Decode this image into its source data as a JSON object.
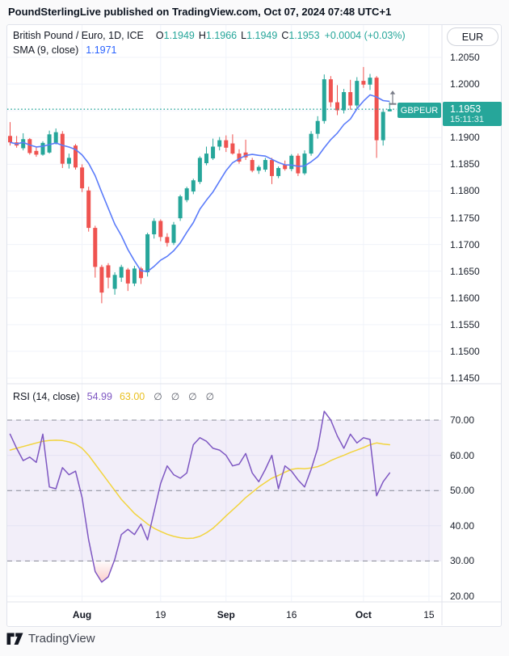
{
  "header": {
    "title": "PoundSterlingLive published on TradingView.com, Oct 07, 2024 07:48 UTC+1"
  },
  "legend": {
    "symbol_title": "British Pound / Euro, 1D, ICE",
    "ohlc": [
      {
        "label": "O",
        "value": "1.1949"
      },
      {
        "label": "H",
        "value": "1.1966"
      },
      {
        "label": "L",
        "value": "1.1949"
      },
      {
        "label": "C",
        "value": "1.1953"
      }
    ],
    "change": "+0.0004 (+0.03%)",
    "sma_label": "SMA (9, close)",
    "sma_value": "1.1971"
  },
  "rsi_legend": {
    "label": "RSI (14, close)",
    "rsi_value": "54.99",
    "ma_value": "63.00",
    "empty_slots": [
      "∅",
      "∅",
      "∅",
      "∅"
    ]
  },
  "currency_button": {
    "label": "EUR"
  },
  "price_line": {
    "symbol_label": "GBPEUR",
    "price": "1.1953",
    "time": "15:11:31"
  },
  "footer": {
    "brand": "TradingView"
  },
  "colors": {
    "up": "#26a69a",
    "down": "#ef5350",
    "sma": "#5b7cfa",
    "sma_value_text": "#2962ff",
    "rsi": "#7e57c2",
    "rsi_ma": "#f2d43e",
    "grid": "#f0f3fa",
    "band": "rgba(126,87,194,0.10)",
    "dashed": "#787b86",
    "border": "#e0e3eb",
    "text": "#131722",
    "muted": "#787b86"
  },
  "chart_data": [
    {
      "type": "candlestick",
      "title": "British Pound / Euro, 1D, ICE",
      "ylabel": "EUR",
      "last_price": 1.1953,
      "last_time": "15:11:31",
      "overlays": [
        {
          "name": "SMA (9, close)",
          "period": 9,
          "last_value": 1.1971
        }
      ],
      "y_grid": [
        1.205,
        1.2,
        1.195,
        1.19,
        1.185,
        1.18,
        1.175,
        1.17,
        1.165,
        1.16,
        1.155,
        1.15,
        1.145
      ],
      "y_ticks": [
        "1.2050",
        "1.2000",
        "1.1900",
        "1.1850",
        "1.1800",
        "1.1750",
        "1.1700",
        "1.1650",
        "1.1600",
        "1.1550",
        "1.1500",
        "1.1450"
      ],
      "x_ticks": [
        {
          "label": "Aug",
          "index": 11,
          "bold": true
        },
        {
          "label": "19",
          "index": 23,
          "bold": false
        },
        {
          "label": "Sep",
          "index": 33,
          "bold": true
        },
        {
          "label": "16",
          "index": 43,
          "bold": false
        },
        {
          "label": "Oct",
          "index": 54,
          "bold": true
        },
        {
          "label": "15",
          "index": 64,
          "bold": false
        }
      ],
      "candles": [
        [
          1.1903,
          1.1929,
          1.1885,
          1.1891
        ],
        [
          1.1891,
          1.1903,
          1.1881,
          1.1885
        ],
        [
          1.188,
          1.1908,
          1.1876,
          1.1897
        ],
        [
          1.1897,
          1.1899,
          1.1868,
          1.1871
        ],
        [
          1.1875,
          1.1882,
          1.1864,
          1.1868
        ],
        [
          1.1868,
          1.1893,
          1.1866,
          1.189
        ],
        [
          1.1872,
          1.1913,
          1.187,
          1.1906
        ],
        [
          1.189,
          1.1917,
          1.1887,
          1.191
        ],
        [
          1.1907,
          1.1912,
          1.1843,
          1.1851
        ],
        [
          1.1851,
          1.187,
          1.1842,
          1.1862
        ],
        [
          1.1885,
          1.1888,
          1.184,
          1.1844
        ],
        [
          1.1844,
          1.185,
          1.1798,
          1.1805
        ],
        [
          1.1801,
          1.1808,
          1.1724,
          1.1731
        ],
        [
          1.1731,
          1.1735,
          1.1638,
          1.1658
        ],
        [
          1.1658,
          1.1662,
          1.159,
          1.161
        ],
        [
          1.1661,
          1.1665,
          1.1618,
          1.1638
        ],
        [
          1.1617,
          1.1648,
          1.1606,
          1.1643
        ],
        [
          1.1638,
          1.1662,
          1.163,
          1.1658
        ],
        [
          1.1653,
          1.1656,
          1.1613,
          1.1627
        ],
        [
          1.1627,
          1.166,
          1.1622,
          1.1655
        ],
        [
          1.1655,
          1.1658,
          1.1626,
          1.1637
        ],
        [
          1.1648,
          1.1722,
          1.164,
          1.1719
        ],
        [
          1.1719,
          1.1749,
          1.1711,
          1.1744
        ],
        [
          1.1744,
          1.1747,
          1.1706,
          1.1714
        ],
        [
          1.1714,
          1.1721,
          1.1696,
          1.1703
        ],
        [
          1.1703,
          1.1742,
          1.1699,
          1.1737
        ],
        [
          1.1749,
          1.1793,
          1.1744,
          1.179
        ],
        [
          1.1783,
          1.1808,
          1.1779,
          1.1805
        ],
        [
          1.1799,
          1.1823,
          1.1794,
          1.182
        ],
        [
          1.1817,
          1.1865,
          1.1813,
          1.1862
        ],
        [
          1.1852,
          1.1883,
          1.1848,
          1.187
        ],
        [
          1.1861,
          1.1898,
          1.1858,
          1.1883
        ],
        [
          1.1883,
          1.1901,
          1.1876,
          1.1895
        ],
        [
          1.1895,
          1.1904,
          1.1873,
          1.1881
        ],
        [
          1.1889,
          1.1906,
          1.1868,
          1.187
        ],
        [
          1.187,
          1.1878,
          1.1851,
          1.1855
        ],
        [
          1.1872,
          1.1896,
          1.1858,
          1.1863
        ],
        [
          1.1858,
          1.1862,
          1.1835,
          1.1838
        ],
        [
          1.1838,
          1.1848,
          1.1832,
          1.1845
        ],
        [
          1.184,
          1.1862,
          1.1836,
          1.1858
        ],
        [
          1.1858,
          1.1862,
          1.1813,
          1.1828
        ],
        [
          1.1828,
          1.1846,
          1.1824,
          1.1843
        ],
        [
          1.1849,
          1.1857,
          1.1838,
          1.1841
        ],
        [
          1.1841,
          1.1869,
          1.1837,
          1.1866
        ],
        [
          1.1866,
          1.187,
          1.1828,
          1.1833
        ],
        [
          1.1833,
          1.1876,
          1.183,
          1.187
        ],
        [
          1.187,
          1.1912,
          1.1866,
          1.1907
        ],
        [
          1.1907,
          1.194,
          1.1898,
          1.1931
        ],
        [
          1.1931,
          1.2018,
          1.1926,
          1.2009
        ],
        [
          1.2009,
          1.2015,
          1.1957,
          1.1966
        ],
        [
          1.1966,
          1.1998,
          1.1942,
          1.1951
        ],
        [
          1.1951,
          1.1991,
          1.1945,
          1.1985
        ],
        [
          1.1985,
          1.2008,
          1.1952,
          1.196
        ],
        [
          1.196,
          1.2013,
          1.1954,
          1.2006
        ],
        [
          1.2006,
          1.2032,
          1.1993,
          1.1999
        ],
        [
          1.1999,
          1.2019,
          1.1989,
          1.2012
        ],
        [
          1.2012,
          1.2015,
          1.1862,
          1.1895
        ],
        [
          1.1895,
          1.1952,
          1.1885,
          1.1948
        ],
        [
          1.1949,
          1.1966,
          1.1949,
          1.1953
        ]
      ]
    },
    {
      "type": "line",
      "title": "RSI (14, close)",
      "overbought": 70,
      "oversold": 30,
      "levels": [
        70,
        50,
        30
      ],
      "ylim": [
        18,
        80
      ],
      "y_ticks": [
        "70.00",
        "60.00",
        "50.00",
        "40.00",
        "30.00",
        "20.00"
      ],
      "legend_values": {
        "rsi": 54.99,
        "ma": 63.0
      },
      "series": [
        {
          "name": "RSI",
          "values": [
            66,
            62,
            58.5,
            59.5,
            58,
            66,
            51,
            50.5,
            56.5,
            54.5,
            55.5,
            48,
            36,
            27,
            24,
            25.5,
            30.5,
            37.5,
            39,
            37.5,
            40.5,
            36,
            44,
            52,
            57,
            54.5,
            53.5,
            55,
            63,
            65,
            64,
            62,
            61.5,
            60,
            57,
            57.5,
            60.5,
            55,
            52.5,
            56,
            60,
            50.5,
            57,
            55.5,
            53,
            51,
            56,
            62,
            72.5,
            70,
            65.5,
            62,
            66,
            63.5,
            65,
            64.5,
            48.5,
            52.5,
            55
          ]
        },
        {
          "name": "RSI-based MA",
          "values": [
            61.5,
            62,
            62.5,
            63,
            63.5,
            64,
            64.2,
            64.3,
            64.2,
            63.8,
            63.2,
            62,
            60,
            57.5,
            55,
            52.5,
            50,
            47.5,
            45.5,
            43.5,
            42,
            40.5,
            39.3,
            38.4,
            37.6,
            37,
            36.6,
            36.4,
            36.5,
            37,
            38,
            39.3,
            41,
            42.8,
            44.5,
            46.2,
            48,
            49.5,
            51,
            52.3,
            53.5,
            54.3,
            55.2,
            56,
            56.3,
            56.2,
            56.4,
            56.8,
            57.5,
            58.5,
            59.3,
            60,
            60.8,
            61.5,
            62.2,
            63,
            63.5,
            63.2,
            63
          ]
        }
      ]
    }
  ]
}
